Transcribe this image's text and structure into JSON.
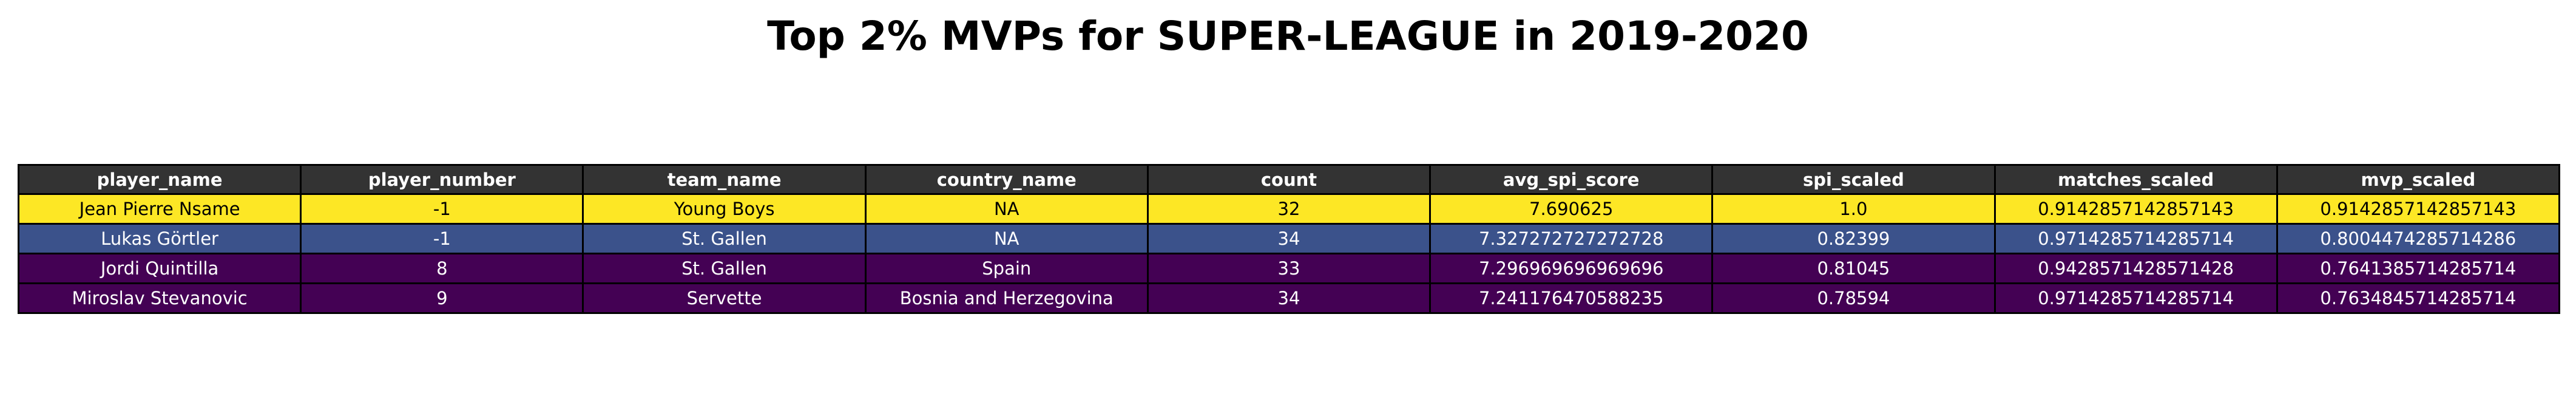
{
  "title": "Top 2% MVPs for SUPER-LEAGUE in 2019-2020",
  "chart_data": {
    "type": "table",
    "title": "Top 2% MVPs for SUPER-LEAGUE in 2019-2020",
    "columns": [
      "player_name",
      "player_number",
      "team_name",
      "country_name",
      "count",
      "avg_spi_score",
      "spi_scaled",
      "matches_scaled",
      "mvp_scaled"
    ],
    "rows": [
      [
        "Jean Pierre Nsame",
        "-1",
        "Young Boys",
        "NA",
        "32",
        "7.690625",
        "1.0",
        "0.9142857142857143",
        "0.9142857142857143"
      ],
      [
        "Lukas Görtler",
        "-1",
        "St. Gallen",
        "NA",
        "34",
        "7.327272727272728",
        "0.82399",
        "0.9714285714285714",
        "0.8004474285714286"
      ],
      [
        "Jordi Quintilla",
        "8",
        "St. Gallen",
        "Spain",
        "33",
        "7.296969696969696",
        "0.81045",
        "0.9428571428571428",
        "0.7641385714285714"
      ],
      [
        "Miroslav Stevanovic",
        "9",
        "Servette",
        "Bosnia and Herzegovina",
        "34",
        "7.241176470588235",
        "0.78594",
        "0.9714285714285714",
        "0.7634845714285714"
      ]
    ],
    "header_color": "#333333",
    "row_colors": [
      "#fde725",
      "#3b528b",
      "#440154",
      "#440154"
    ],
    "row_text_colors": [
      "#000000",
      "#ffffff",
      "#ffffff",
      "#ffffff"
    ],
    "grid": true
  }
}
